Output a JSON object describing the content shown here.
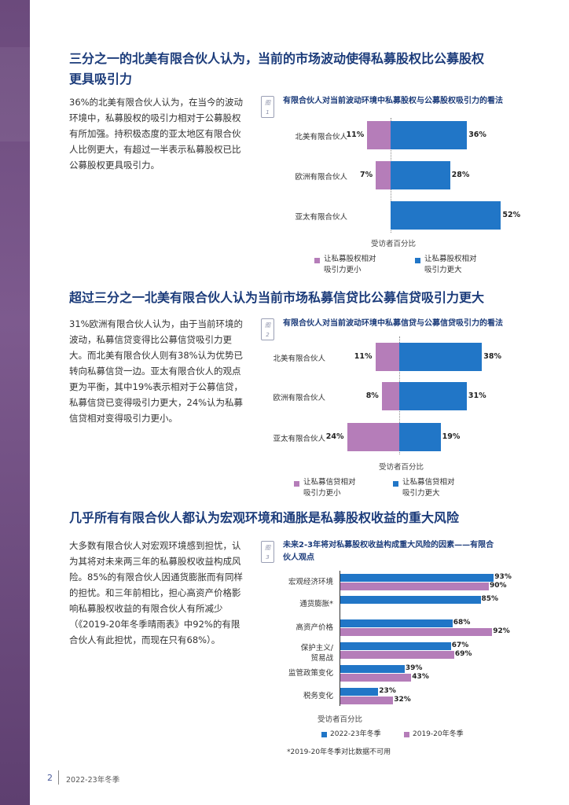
{
  "colors": {
    "title": "#1b3b7a",
    "purple": "#b57db9",
    "blue": "#2176c7",
    "sidebar": "#6b4a7c"
  },
  "sections": [
    {
      "title_line1": "三分之一的北美有限合伙人认为，当前的市场波动使得私募股权比公募股权",
      "title_line2": "更具吸引力",
      "body": "36%的北美有限合伙人认为，在当今的波动环境中，私募股权的吸引力相对于公募股权有所加强。持积极态度的亚太地区有限合伙人比例更大，有超过一半表示私募股权已比公募股权更具吸引力。"
    },
    {
      "title_line1": "超过三分之一北美有限合伙人认为当前市场私募信贷比公募信贷吸引力更大",
      "body": "31%欧洲有限合伙人认为，由于当前环境的波动，私募信贷变得比公募信贷吸引力更大。而北美有限合伙人则有38%认为优势已转向私募信贷一边。亚太有限合伙人的观点更为平衡，其中19%表示相对于公募信贷，私募信贷已变得吸引力更大，24%认为私募信贷相对变得吸引力更小。"
    },
    {
      "title_line1": "几乎所有有限合伙人都认为宏观环境和通胀是私募股权收益的重大风险",
      "body": "大多数有限合伙人对宏观环境感到担忧，认为其将对未来两三年的私募股权收益构成风险。85%的有限合伙人因通货膨胀而有同样的担忧。和三年前相比，担心高资产价格影响私募股权收益的有限合伙人有所减少（《2019-20年冬季晴雨表》中92%的有限合伙人有此担忧，而现在只有68%）。"
    }
  ],
  "figures": {
    "fig1": {
      "tag_word": "图",
      "tag_num": "1",
      "title": "有限合伙人对当前波动环境中私募股权与公募股权吸引力的看法",
      "axis_note": "受访者百分比",
      "legend_less_1": "让私募股权相对",
      "legend_less_2": "吸引力更小",
      "legend_more_1": "让私募股权相对",
      "legend_more_2": "吸引力更大"
    },
    "fig2": {
      "tag_word": "图",
      "tag_num": "2",
      "title": "有限合伙人对当前波动环境中私募信贷与公募信贷吸引力的看法",
      "axis_note": "受访者百分比",
      "legend_less_1": "让私募信贷相对",
      "legend_less_2": "吸引力更小",
      "legend_more_1": "让私募信贷相对",
      "legend_more_2": "吸引力更大"
    },
    "fig3": {
      "tag_word": "图",
      "tag_num": "3",
      "title_line1": "未来2-3年将对私募股权收益构成重大风险的因素——有限合",
      "title_line2": "伙人观点",
      "axis_note": "受访者百分比",
      "legend_2022": "2022-23年冬季",
      "legend_2019": "2019-20年冬季",
      "footnote": "*2019-20年冬季对比数据不可用"
    }
  },
  "chart_data": [
    {
      "type": "bar",
      "orientation": "diverging-horizontal",
      "title": "有限合伙人对当前波动环境中私募股权与公募股权吸引力的看法",
      "categories": [
        "北美有限合伙人",
        "欧洲有限合伙人",
        "亚太有限合伙人"
      ],
      "series": [
        {
          "name": "让私募股权相对吸引力更小",
          "values": [
            11,
            7,
            null
          ],
          "labels": [
            "11%",
            "7%",
            ""
          ]
        },
        {
          "name": "让私募股权相对吸引力更大",
          "values": [
            36,
            28,
            52
          ],
          "labels": [
            "36%",
            "28%",
            "52%"
          ]
        }
      ],
      "xlabel": "受访者百分比"
    },
    {
      "type": "bar",
      "orientation": "diverging-horizontal",
      "title": "有限合伙人对当前波动环境中私募信贷与公募信贷吸引力的看法",
      "categories": [
        "北美有限合伙人",
        "欧洲有限合伙人",
        "亚太有限合伙人"
      ],
      "series": [
        {
          "name": "让私募信贷相对吸引力更小",
          "values": [
            11,
            8,
            24
          ],
          "labels": [
            "11%",
            "8%",
            "24%"
          ]
        },
        {
          "name": "让私募信贷相对吸引力更大",
          "values": [
            38,
            31,
            19
          ],
          "labels": [
            "38%",
            "31%",
            "19%"
          ]
        }
      ],
      "xlabel": "受访者百分比"
    },
    {
      "type": "bar",
      "orientation": "grouped-horizontal",
      "title": "未来2-3年将对私募股权收益构成重大风险的因素——有限合伙人观点",
      "categories": [
        "宏观经济环境",
        "通货膨胀*",
        "高资产价格",
        "保护主义/贸易战",
        "监管政策变化",
        "税务变化"
      ],
      "series": [
        {
          "name": "2022-23年冬季",
          "values": [
            93,
            85,
            68,
            67,
            39,
            23
          ],
          "labels": [
            "93%",
            "85%",
            "68%",
            "67%",
            "39%",
            "23%"
          ]
        },
        {
          "name": "2019-20年冬季",
          "values": [
            90,
            null,
            92,
            69,
            43,
            32
          ],
          "labels": [
            "90%",
            "",
            "92%",
            "69%",
            "43%",
            "32%"
          ]
        }
      ],
      "xlabel": "受访者百分比",
      "footnote": "*2019-20年冬季对比数据不可用"
    }
  ],
  "footer": {
    "page_number": "2",
    "label": "2022-23年冬季"
  }
}
